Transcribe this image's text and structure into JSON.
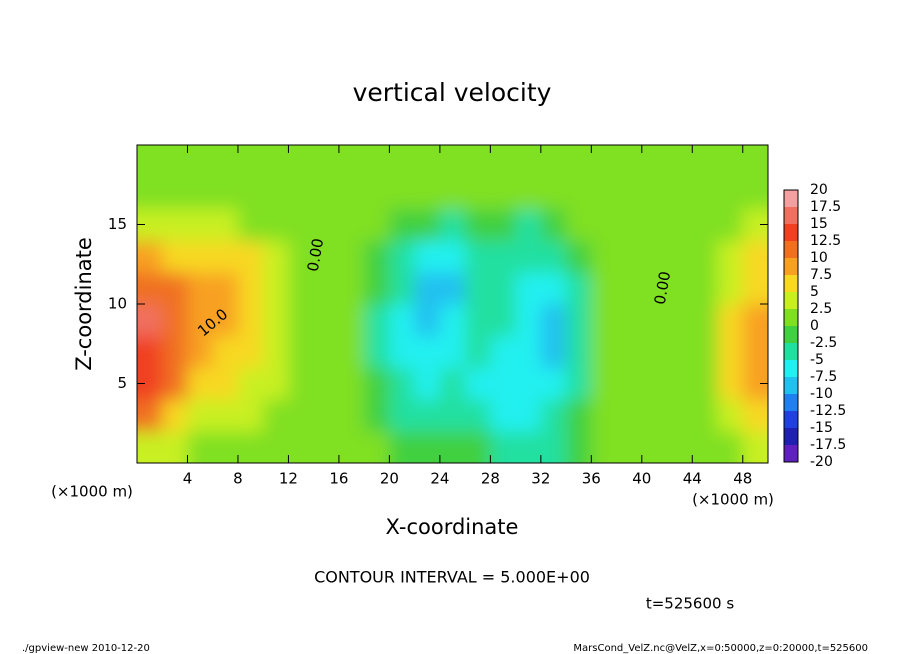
{
  "chart_data": {
    "type": "contour",
    "title": "vertical velocity",
    "xlabel": "X-coordinate",
    "ylabel": "Z-coordinate",
    "x_unit": "(×1000 m)",
    "y_unit": "(×1000 m)",
    "xlim": [
      0,
      50
    ],
    "ylim": [
      0,
      20
    ],
    "xticks": [
      4,
      8,
      12,
      16,
      20,
      24,
      28,
      32,
      36,
      40,
      44,
      48
    ],
    "yticks": [
      5,
      10,
      15
    ],
    "x": [
      1,
      3,
      5,
      7,
      9,
      11,
      13,
      15,
      17,
      19,
      21,
      23,
      25,
      27,
      29,
      31,
      33,
      35,
      37,
      39,
      41,
      43,
      45,
      47,
      49
    ],
    "y": [
      1,
      3,
      5,
      7,
      9,
      11,
      13,
      15,
      17,
      19
    ],
    "z": [
      [
        4,
        3,
        2,
        2,
        2,
        1,
        1,
        1,
        1,
        0,
        -1,
        -2,
        -2,
        -2,
        -3,
        -4,
        -3,
        -1,
        1,
        1,
        1,
        1,
        1,
        2,
        3
      ],
      [
        10,
        6,
        4,
        3,
        3,
        2,
        1,
        1,
        1,
        -1,
        -4,
        -5,
        -4,
        -5,
        -6,
        -6,
        -5,
        -2,
        1,
        1,
        1,
        1,
        2,
        4,
        6
      ],
      [
        13,
        10,
        7,
        5,
        4,
        3,
        1,
        1,
        1,
        -2,
        -5,
        -6,
        -5,
        -6,
        -7,
        -7,
        -6,
        -3,
        1,
        1,
        1,
        1,
        2,
        5,
        8
      ],
      [
        14,
        11,
        9,
        7,
        5,
        3,
        1,
        1,
        1,
        -3,
        -6,
        -7,
        -6,
        -5,
        -6,
        -7,
        -8,
        -4,
        0,
        1,
        1,
        1,
        2,
        5,
        9
      ],
      [
        15,
        12,
        9,
        8,
        6,
        3,
        1,
        1,
        1,
        -3,
        -6,
        -8,
        -7,
        -5,
        -5,
        -7,
        -9,
        -5,
        0,
        1,
        1,
        1,
        2,
        5,
        9
      ],
      [
        12,
        10,
        9,
        8,
        7,
        4,
        1,
        1,
        1,
        -2,
        -5,
        -8,
        -8,
        -5,
        -5,
        -6,
        -7,
        -4,
        0,
        1,
        1,
        1,
        2,
        4,
        7
      ],
      [
        8,
        7,
        6,
        5,
        5,
        3,
        1,
        1,
        1,
        -1,
        -4,
        -6,
        -6,
        -4,
        -4,
        -5,
        -4,
        -2,
        0,
        1,
        1,
        1,
        1,
        3,
        5
      ],
      [
        3,
        3,
        3,
        3,
        2,
        2,
        1,
        1,
        1,
        0,
        -1,
        -2,
        -3,
        -2,
        -2,
        -3,
        -1,
        0,
        0,
        1,
        1,
        1,
        1,
        2,
        3
      ],
      [
        1,
        1,
        1,
        1,
        1,
        1,
        1,
        1,
        1,
        1,
        0,
        0,
        0,
        0,
        0,
        0,
        0,
        0,
        1,
        1,
        1,
        1,
        1,
        1,
        1
      ],
      [
        1,
        1,
        1,
        1,
        1,
        1,
        1,
        1,
        1,
        1,
        1,
        1,
        1,
        1,
        1,
        1,
        1,
        1,
        1,
        1,
        1,
        1,
        1,
        1,
        1
      ]
    ],
    "levels": [
      -20,
      -17.5,
      -15,
      -12.5,
      -10,
      -7.5,
      -5,
      -2.5,
      0,
      2.5,
      5,
      7.5,
      10,
      12.5,
      15,
      17.5,
      20
    ],
    "level_colors": [
      "#6020c0",
      "#2020b0",
      "#2040e0",
      "#2080f0",
      "#20c0f0",
      "#20f0f0",
      "#20e0a0",
      "#40d040",
      "#80e020",
      "#c8f020",
      "#f8d820",
      "#f8a020",
      "#f07020",
      "#f04020",
      "#f07060",
      "#f4a0a0"
    ],
    "contour_labels": [
      "0.00",
      "0.00",
      "10.0"
    ],
    "contour_interval": "CONTOUR INTERVAL = 5.000E+00",
    "time_label": "t=525600 s",
    "footer_left": "./gpview-new  2010-12-20",
    "footer_right": "MarsCond_VelZ.nc@VelZ,x=0:50000,z=0:20000,t=525600"
  }
}
